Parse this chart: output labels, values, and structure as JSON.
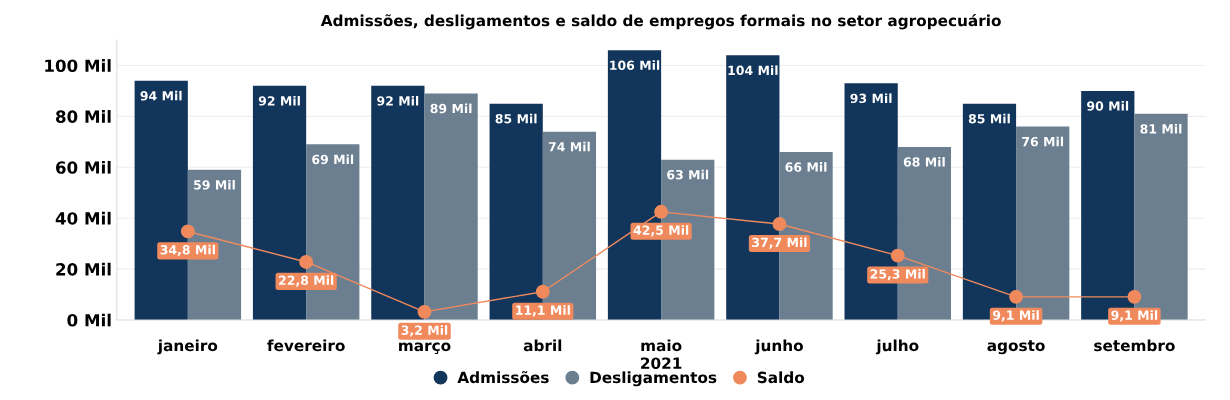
{
  "chart_data": {
    "type": "bar",
    "title": "Admissões, desligamentos e saldo de empregos formais no setor agropecuário",
    "xlabel": "2021",
    "categories": [
      "janeiro",
      "fevereiro",
      "março",
      "abril",
      "maio",
      "junho",
      "julho",
      "agosto",
      "setembro"
    ],
    "series": [
      {
        "name": "Admissões",
        "color": "#12355b",
        "values": [
          94,
          92,
          92,
          85,
          106,
          104,
          93,
          85,
          90
        ],
        "value_labels": [
          "94 Mil",
          "92 Mil",
          "92 Mil",
          "85 Mil",
          "106 Mil",
          "104 Mil",
          "93 Mil",
          "85 Mil",
          "90 Mil"
        ]
      },
      {
        "name": "Desligamentos",
        "color": "#6b7f91",
        "values": [
          59,
          69,
          89,
          74,
          63,
          66,
          68,
          76,
          81
        ],
        "value_labels": [
          "59 Mil",
          "69 Mil",
          "89 Mil",
          "74 Mil",
          "63 Mil",
          "66 Mil",
          "68 Mil",
          "76 Mil",
          "81 Mil"
        ]
      },
      {
        "name": "Saldo",
        "type": "line",
        "color": "#f08a5d",
        "marker": "circle",
        "values": [
          34.8,
          22.8,
          3.2,
          11.1,
          42.5,
          37.7,
          25.3,
          9.1,
          9.1
        ],
        "value_labels": [
          "34,8 Mil",
          "22,8 Mil",
          "3,2 Mil",
          "11,1 Mil",
          "42,5 Mil",
          "37,7 Mil",
          "25,3 Mil",
          "9,1 Mil",
          "9,1 Mil"
        ]
      }
    ],
    "ylim": [
      0,
      110
    ],
    "yticks": [
      {
        "value": 0,
        "label": "0 Mil"
      },
      {
        "value": 20,
        "label": "20 Mil"
      },
      {
        "value": 40,
        "label": "40 Mil"
      },
      {
        "value": 60,
        "label": "60 Mil"
      },
      {
        "value": 80,
        "label": "80 Mil"
      },
      {
        "value": 100,
        "label": "100 Mil"
      }
    ],
    "grid": "y",
    "legend": "bottom"
  }
}
